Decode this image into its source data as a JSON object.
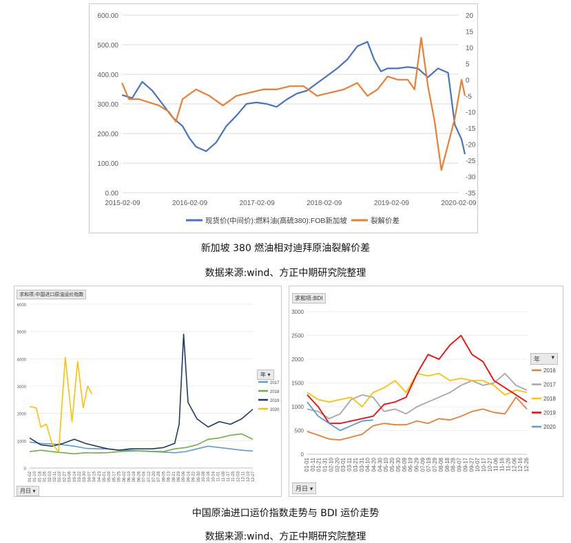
{
  "captions": {
    "top_title": "新加坡 380 燃油相对迪拜原油裂解价差",
    "top_source": "数据来源:wind、方正中期研究院整理",
    "bottom_title": "中国原油进口运价指数走势与 BDI 运价走势",
    "bottom_source": "数据来源:wind、方正中期研究院整理"
  },
  "chart_data": [
    {
      "type": "line",
      "title": "",
      "x_ticks": [
        "2015-02-09",
        "2016-02-09",
        "2017-02-09",
        "2018-02-09",
        "2019-02-09",
        "2020-02-09"
      ],
      "y_left_ticks": [
        "0.00",
        "100.00",
        "200.00",
        "300.00",
        "400.00",
        "500.00",
        "600.00"
      ],
      "y_right_ticks": [
        "-35",
        "-30",
        "-25",
        "-20",
        "-15",
        "-10",
        "-5",
        "0",
        "5",
        "10",
        "15",
        "20"
      ],
      "ylim_left": [
        0,
        600
      ],
      "ylim_right": [
        -35,
        20
      ],
      "legend_position": "bottom",
      "series": [
        {
          "name": "现货价(中间价):燃料油(高硫380):FOB新加坡",
          "axis": "left",
          "color": "#4472c4",
          "x": [
            2015.1,
            2015.25,
            2015.4,
            2015.55,
            2015.7,
            2015.85,
            2016.0,
            2016.1,
            2016.2,
            2016.35,
            2016.5,
            2016.65,
            2016.8,
            2016.95,
            2017.1,
            2017.25,
            2017.4,
            2017.55,
            2017.7,
            2017.85,
            2018.0,
            2018.15,
            2018.3,
            2018.45,
            2018.6,
            2018.75,
            2018.85,
            2018.95,
            2019.05,
            2019.2,
            2019.35,
            2019.5,
            2019.65,
            2019.8,
            2019.95,
            2020.05,
            2020.15,
            2020.2
          ],
          "values": [
            330,
            320,
            375,
            345,
            300,
            255,
            225,
            185,
            155,
            140,
            170,
            225,
            260,
            300,
            305,
            300,
            290,
            315,
            335,
            345,
            370,
            395,
            420,
            450,
            495,
            510,
            450,
            410,
            420,
            420,
            425,
            420,
            390,
            420,
            405,
            230,
            180,
            130
          ]
        },
        {
          "name": "裂解价差",
          "axis": "right",
          "color": "#ed7d31",
          "x": [
            2015.1,
            2015.2,
            2015.35,
            2015.5,
            2015.65,
            2015.8,
            2015.9,
            2016.0,
            2016.2,
            2016.4,
            2016.6,
            2016.8,
            2017.0,
            2017.2,
            2017.4,
            2017.6,
            2017.8,
            2018.0,
            2018.2,
            2018.4,
            2018.6,
            2018.75,
            2018.9,
            2019.05,
            2019.2,
            2019.35,
            2019.45,
            2019.55,
            2019.65,
            2019.75,
            2019.85,
            2019.95,
            2020.05,
            2020.15,
            2020.2
          ],
          "values": [
            -1,
            -6,
            -6,
            -7,
            -8,
            -10,
            -13,
            -6,
            -3,
            -5,
            -8,
            -5,
            -4,
            -3,
            -3,
            -2,
            -2,
            -5,
            -4,
            -3,
            -1,
            -5,
            -3,
            1,
            0,
            0,
            -3,
            13,
            -2,
            -13,
            -28,
            -20,
            -12,
            0,
            -5
          ]
        }
      ]
    },
    {
      "type": "line",
      "title": "",
      "header_tag": "求和项:中国进口原油运价指数",
      "field_button": "月日",
      "legend_title": "年",
      "x_ticks": [
        "01-02",
        "01-10",
        "01-18",
        "01-26",
        "02-03",
        "02-11",
        "02-19",
        "02-27",
        "03-06",
        "03-14",
        "03-22",
        "03-30",
        "04-07",
        "04-15",
        "04-23",
        "05-01",
        "05-09",
        "05-17",
        "05-25",
        "06-02",
        "06-10",
        "06-18",
        "06-26",
        "07-04",
        "07-12",
        "07-20",
        "07-28",
        "08-05",
        "08-13",
        "08-21",
        "08-29",
        "09-06",
        "09-14",
        "09-22",
        "09-30",
        "10-08",
        "10-16",
        "10-24",
        "11-01",
        "11-09",
        "11-17",
        "11-25",
        "12-03",
        "12-11",
        "12-19",
        "12-27"
      ],
      "y_ticks": [
        "0",
        "1000",
        "2000",
        "3000",
        "4000",
        "5000",
        "6000"
      ],
      "ylim": [
        0,
        6000
      ],
      "series": [
        {
          "name": "2017",
          "color": "#5b9bd5",
          "x": [
            0,
            1,
            2,
            3,
            4,
            5,
            6,
            7,
            8,
            9,
            10,
            11,
            12,
            13,
            14,
            15,
            16,
            17,
            18,
            19,
            20
          ],
          "values": [
            950,
            900,
            880,
            850,
            800,
            720,
            700,
            700,
            650,
            650,
            620,
            600,
            580,
            560,
            600,
            700,
            800,
            750,
            700,
            650,
            620
          ]
        },
        {
          "name": "2018",
          "color": "#70ad47",
          "x": [
            0,
            1,
            2,
            3,
            4,
            5,
            6,
            7,
            8,
            9,
            10,
            11,
            12,
            13,
            14,
            15,
            16,
            17,
            18,
            19,
            20
          ],
          "values": [
            600,
            650,
            600,
            560,
            520,
            560,
            550,
            560,
            600,
            620,
            630,
            610,
            600,
            700,
            750,
            850,
            1050,
            1100,
            1200,
            1250,
            1050
          ]
        },
        {
          "name": "2019",
          "color": "#203864",
          "x": [
            0,
            1,
            2,
            3,
            4,
            5,
            6,
            7,
            8,
            9,
            10,
            11,
            12,
            13,
            13.4,
            13.8,
            14.2,
            15,
            16,
            17,
            18,
            19,
            20
          ],
          "values": [
            1100,
            850,
            800,
            900,
            1050,
            900,
            800,
            700,
            650,
            700,
            700,
            700,
            750,
            900,
            1600,
            4900,
            2400,
            1800,
            1500,
            1700,
            1600,
            1800,
            2150
          ]
        },
        {
          "name": "2020",
          "color": "#ffc000",
          "x": [
            0,
            0.6,
            1.0,
            1.5,
            2.0,
            2.6,
            3.2,
            3.8,
            4.3,
            4.8,
            5.2,
            5.6
          ],
          "values": [
            2250,
            2200,
            1500,
            1600,
            900,
            600,
            4050,
            1700,
            3900,
            2200,
            3000,
            2700
          ]
        }
      ]
    },
    {
      "type": "line",
      "title": "",
      "header_tag": "求和项:BDI",
      "field_button": "月日",
      "legend_title": "年",
      "x_ticks": [
        "01-01",
        "01-11",
        "01-21",
        "01-31",
        "02-10",
        "02-20",
        "03-01",
        "03-11",
        "03-21",
        "03-31",
        "04-10",
        "04-20",
        "04-30",
        "05-10",
        "05-20",
        "05-30",
        "06-09",
        "06-19",
        "06-29",
        "07-09",
        "07-19",
        "07-29",
        "08-08",
        "08-18",
        "08-28",
        "09-07",
        "09-17",
        "09-27",
        "10-07",
        "10-17",
        "10-27",
        "11-06",
        "11-16",
        "11-26",
        "12-06",
        "12-16",
        "12-26"
      ],
      "y_ticks": [
        "0",
        "500",
        "1000",
        "1500",
        "2000",
        "2500",
        "3000"
      ],
      "ylim": [
        0,
        3000
      ],
      "series": [
        {
          "name": "2016",
          "color": "#ed7d31",
          "x": [
            0,
            1,
            2,
            3,
            4,
            5,
            6,
            7,
            8,
            9,
            10,
            11,
            12,
            13,
            14,
            15,
            16,
            17,
            18,
            19,
            20
          ],
          "values": [
            480,
            400,
            320,
            300,
            360,
            420,
            600,
            650,
            620,
            620,
            700,
            650,
            750,
            720,
            800,
            900,
            950,
            880,
            850,
            1200,
            950
          ]
        },
        {
          "name": "2017",
          "color": "#a5a5a5",
          "x": [
            0,
            1,
            2,
            3,
            4,
            5,
            6,
            7,
            8,
            9,
            10,
            11,
            12,
            13,
            14,
            15,
            16,
            17,
            18,
            19,
            20
          ],
          "values": [
            950,
            900,
            750,
            850,
            1150,
            1250,
            1200,
            900,
            950,
            850,
            1000,
            1100,
            1200,
            1300,
            1450,
            1550,
            1450,
            1500,
            1700,
            1450,
            1350
          ]
        },
        {
          "name": "2018",
          "color": "#ffc000",
          "x": [
            0,
            1,
            2,
            3,
            4,
            5,
            6,
            7,
            8,
            9,
            10,
            11,
            12,
            13,
            14,
            15,
            16,
            17,
            18,
            19,
            20
          ],
          "values": [
            1300,
            1150,
            1100,
            1150,
            1200,
            1000,
            1300,
            1400,
            1550,
            1300,
            1700,
            1650,
            1700,
            1550,
            1600,
            1550,
            1550,
            1450,
            1250,
            1350,
            1300
          ]
        },
        {
          "name": "2019",
          "color": "#ff0000",
          "x": [
            0,
            1,
            2,
            3,
            4,
            5,
            6,
            7,
            8,
            9,
            10,
            11,
            12,
            13,
            14,
            15,
            16,
            17,
            18,
            19,
            20
          ],
          "values": [
            1250,
            1000,
            650,
            650,
            700,
            750,
            800,
            1050,
            1100,
            1200,
            1700,
            2100,
            2000,
            2300,
            2500,
            2100,
            1950,
            1550,
            1400,
            1250,
            1100
          ]
        },
        {
          "name": "2020",
          "color": "#5b9bd5",
          "x": [
            0,
            1,
            2,
            3,
            4,
            5,
            6
          ],
          "values": [
            1100,
            800,
            650,
            500,
            600,
            700,
            720
          ]
        }
      ]
    }
  ]
}
